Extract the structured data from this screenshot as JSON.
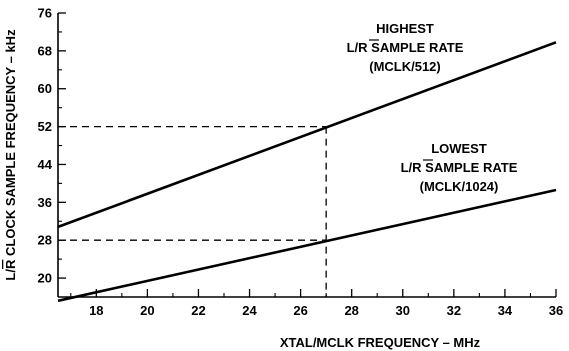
{
  "chart_data": {
    "type": "line",
    "xlabel": "XTAL/MCLK FREQUENCY – MHz",
    "ylabel": {
      "pre": "L/",
      "r": "R",
      "post": " CLOCK SAMPLE FREQUENCY – kHz"
    },
    "xlim": [
      16.5,
      36
    ],
    "ylim": [
      16,
      76
    ],
    "x_ticks": [
      18,
      20,
      22,
      24,
      26,
      28,
      30,
      32,
      34,
      36
    ],
    "y_ticks": [
      20,
      28,
      36,
      44,
      52,
      60,
      68,
      76
    ],
    "grid": false,
    "series": [
      {
        "x": [
          16.5,
          36
        ],
        "y": [
          30.8,
          69.8
        ]
      },
      {
        "x": [
          16.5,
          36
        ],
        "y": [
          15.2,
          38.6
        ]
      }
    ],
    "reference_lines": [
      {
        "x": 27,
        "y": 52
      },
      {
        "x": 27,
        "y": 28
      }
    ],
    "annotations": [
      {
        "lines": [
          "HIGHEST",
          "L/R SAMPLE RATE",
          "(MCLK/512)"
        ]
      },
      {
        "lines": [
          "LOWEST",
          "L/R SAMPLE RATE",
          "(MCLK/1024)"
        ]
      }
    ]
  }
}
